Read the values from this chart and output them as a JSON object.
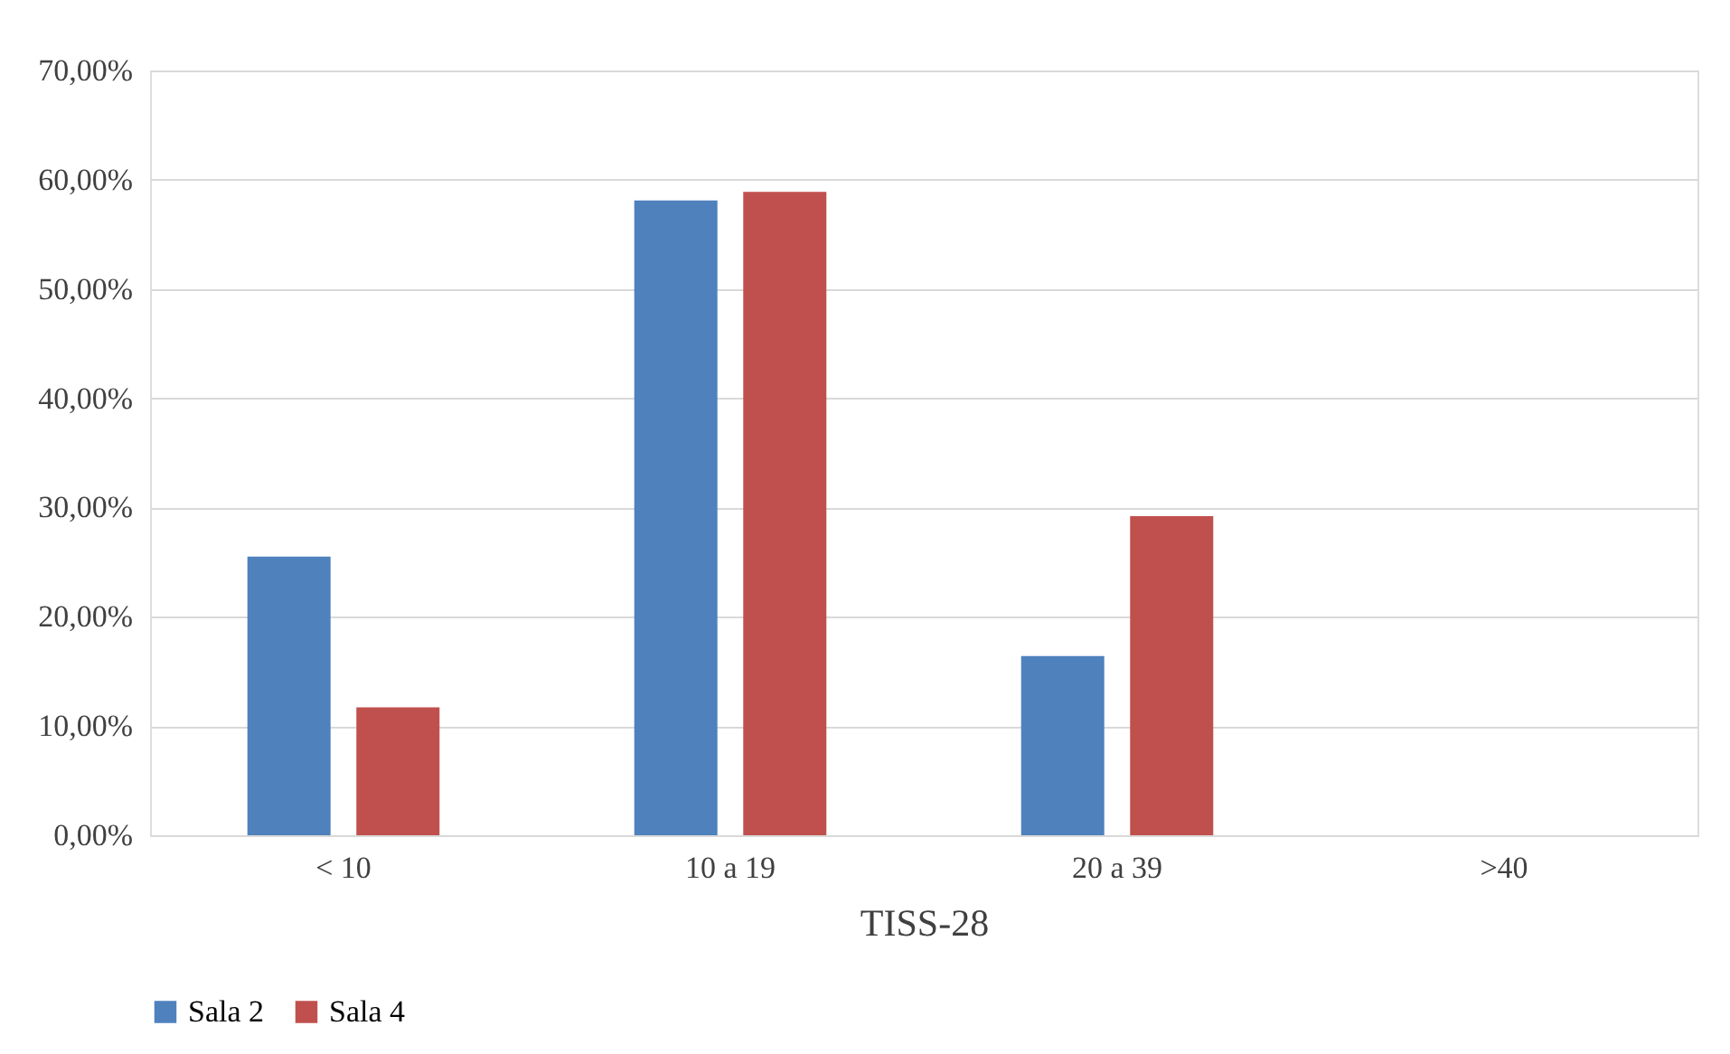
{
  "chart_data": {
    "type": "bar",
    "xlabel": "TISS-28",
    "categories": [
      "< 10",
      "10 a 19",
      "20 a 39",
      ">40"
    ],
    "series": [
      {
        "name": "Sala 2",
        "color": "#4f81bd",
        "values": [
          25.5,
          58.1,
          16.4,
          0
        ]
      },
      {
        "name": "Sala 4",
        "color": "#c0504d",
        "values": [
          11.7,
          58.9,
          29.2,
          0
        ]
      }
    ],
    "ylim": [
      0,
      70
    ],
    "yticks": [
      {
        "value": 0,
        "label": "0,00%"
      },
      {
        "value": 10,
        "label": "10,00%"
      },
      {
        "value": 20,
        "label": "20,00%"
      },
      {
        "value": 30,
        "label": "30,00%"
      },
      {
        "value": 40,
        "label": "40,00%"
      },
      {
        "value": 50,
        "label": "50,00%"
      },
      {
        "value": 60,
        "label": "60,00%"
      },
      {
        "value": 70,
        "label": "70,00%"
      }
    ],
    "grid": "y",
    "legend": "bottom"
  }
}
